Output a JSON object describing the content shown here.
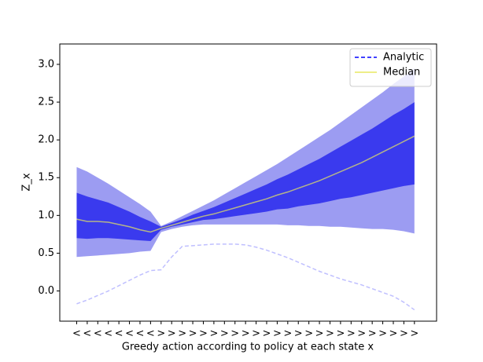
{
  "chart_data": {
    "type": "line",
    "xlabel": "Greedy action according to policy at each state x",
    "ylabel": "Z_x",
    "categories": [
      "<",
      "<",
      "<",
      "<",
      "<",
      "<",
      "<",
      "<",
      ">",
      ">",
      ">",
      ">",
      ">",
      ">",
      ">",
      ">",
      ">",
      ">",
      ">",
      ">",
      ">",
      ">",
      ">",
      ">",
      ">",
      ">",
      ">",
      ">",
      ">",
      ">",
      ">",
      ">",
      ">"
    ],
    "xlim": [
      -1.6,
      34.1
    ],
    "ylim": [
      -0.4,
      3.27
    ],
    "yticks": [
      {
        "value": 0,
        "label": "0.0"
      },
      0.5,
      {
        "value": 1,
        "label": "1.0"
      },
      1.5,
      {
        "value": 2,
        "label": "2.0"
      },
      2.5,
      {
        "value": 3,
        "label": "3.0"
      }
    ],
    "legend": "upper right",
    "bands": [
      {
        "color": "#9c9cf2",
        "upper": [
          1.64,
          1.58,
          1.5,
          1.42,
          1.33,
          1.24,
          1.15,
          1.05,
          0.86,
          0.92,
          0.99,
          1.06,
          1.13,
          1.2,
          1.28,
          1.36,
          1.44,
          1.52,
          1.6,
          1.68,
          1.77,
          1.86,
          1.95,
          2.04,
          2.13,
          2.23,
          2.33,
          2.43,
          2.53,
          2.63,
          2.74,
          2.84,
          2.95
        ],
        "lower": [
          0.45,
          0.46,
          0.47,
          0.48,
          0.49,
          0.5,
          0.52,
          0.53,
          0.78,
          0.82,
          0.85,
          0.87,
          0.88,
          0.88,
          0.88,
          0.88,
          0.88,
          0.88,
          0.88,
          0.88,
          0.87,
          0.87,
          0.86,
          0.86,
          0.85,
          0.85,
          0.84,
          0.83,
          0.82,
          0.82,
          0.81,
          0.79,
          0.76
        ]
      },
      {
        "color": "#3a3aee",
        "upper": [
          1.3,
          1.25,
          1.21,
          1.17,
          1.11,
          1.05,
          0.98,
          0.92,
          0.85,
          0.9,
          0.95,
          1.01,
          1.06,
          1.11,
          1.17,
          1.23,
          1.29,
          1.35,
          1.41,
          1.48,
          1.54,
          1.61,
          1.68,
          1.75,
          1.83,
          1.91,
          1.99,
          2.07,
          2.15,
          2.24,
          2.33,
          2.41,
          2.5
        ],
        "lower": [
          0.7,
          0.69,
          0.7,
          0.7,
          0.69,
          0.68,
          0.67,
          0.66,
          0.81,
          0.85,
          0.88,
          0.91,
          0.94,
          0.95,
          0.97,
          0.99,
          1.01,
          1.03,
          1.05,
          1.08,
          1.09,
          1.12,
          1.14,
          1.16,
          1.19,
          1.22,
          1.24,
          1.27,
          1.3,
          1.33,
          1.36,
          1.39,
          1.41
        ]
      }
    ],
    "series": [
      {
        "name": "Analytic",
        "color": "#0000ff",
        "dashed": true,
        "alpha": 0.25,
        "values": [
          -0.17,
          -0.12,
          -0.06,
          0.0,
          0.07,
          0.14,
          0.21,
          0.27,
          0.28,
          0.45,
          0.59,
          0.6,
          0.61,
          0.62,
          0.62,
          0.62,
          0.61,
          0.58,
          0.54,
          0.49,
          0.44,
          0.38,
          0.32,
          0.26,
          0.21,
          0.16,
          0.12,
          0.08,
          0.03,
          -0.02,
          -0.07,
          -0.15,
          -0.25
        ]
      },
      {
        "name": "Median",
        "color": "#e8e860",
        "dashed": false,
        "alpha": 0.7,
        "values": [
          0.95,
          0.92,
          0.92,
          0.91,
          0.88,
          0.85,
          0.81,
          0.78,
          0.83,
          0.87,
          0.91,
          0.95,
          0.99,
          1.02,
          1.06,
          1.1,
          1.14,
          1.18,
          1.22,
          1.27,
          1.31,
          1.36,
          1.41,
          1.46,
          1.52,
          1.58,
          1.64,
          1.7,
          1.77,
          1.84,
          1.91,
          1.98,
          2.05
        ]
      }
    ]
  }
}
